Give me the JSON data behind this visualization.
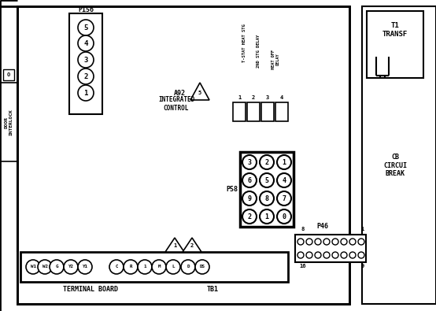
{
  "bg_color": "#ffffff",
  "line_color": "#000000",
  "p156_label": "P156",
  "p156_pins": [
    "5",
    "4",
    "3",
    "2",
    "1"
  ],
  "a92_label": "A92",
  "a92_sublabel": "INTEGRATED\nCONTROL",
  "t1_label": "T1\nTRANSF",
  "cb_label": "CB\nCIRCUI\nBREAK",
  "relay_labels": [
    "T-STAT HEAT STG",
    "2ND STG DELAY",
    "HEAT OFF\nDELAY"
  ],
  "relay_numbers": [
    "1",
    "2",
    "3",
    "4"
  ],
  "p58_label": "P58",
  "p58_pins": [
    [
      "3",
      "2",
      "1"
    ],
    [
      "6",
      "5",
      "4"
    ],
    [
      "9",
      "8",
      "7"
    ],
    [
      "2",
      "1",
      "0"
    ]
  ],
  "p46_label": "P46",
  "terminal_labels": [
    "W1",
    "W2",
    "G",
    "Y2",
    "Y1",
    "C",
    "R",
    "1",
    "M",
    "L",
    "D",
    "DS"
  ],
  "terminal_board_label": "TERMINAL BOARD",
  "tb1_label": "TB1",
  "interlock_label": "DOOR\nINTERLOCK",
  "warn1": "1",
  "warn2": "2"
}
